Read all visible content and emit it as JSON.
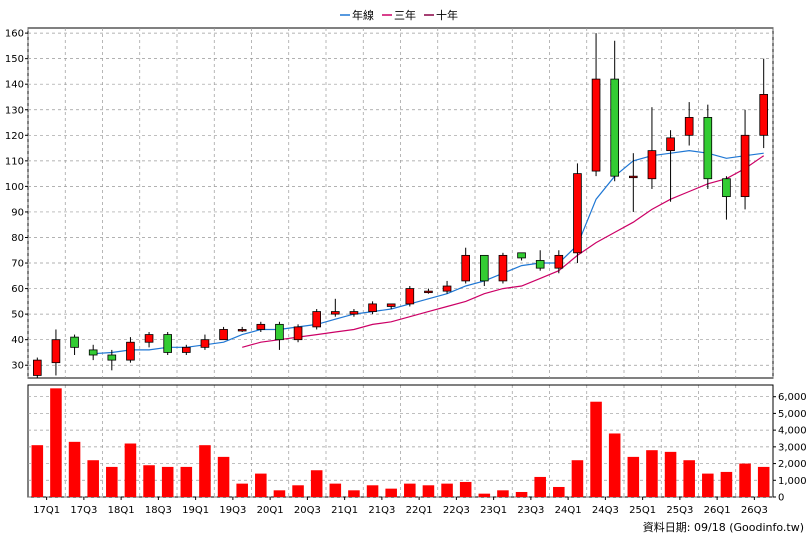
{
  "chart_data": {
    "type": "candlestick",
    "legend": [
      {
        "name": "年線",
        "color": "#1f77d4"
      },
      {
        "name": "三年",
        "color": "#cc0066"
      },
      {
        "name": "十年",
        "color": "#880044"
      }
    ],
    "legend_position": "top-center",
    "x_tick_labels": [
      "17Q1",
      "17Q3",
      "18Q1",
      "18Q3",
      "19Q1",
      "19Q3",
      "20Q1",
      "20Q3",
      "21Q1",
      "21Q3",
      "22Q1",
      "22Q3",
      "23Q1",
      "23Q3",
      "24Q1",
      "24Q3",
      "25Q1",
      "25Q3",
      "26Q1",
      "26Q3"
    ],
    "price_axis": {
      "range": [
        25,
        162
      ],
      "ticks": [
        30,
        40,
        50,
        60,
        70,
        80,
        90,
        100,
        110,
        120,
        130,
        140,
        150,
        160
      ],
      "side": "left"
    },
    "volume_axis": {
      "range": [
        0,
        6700
      ],
      "ticks": [
        0,
        1000,
        2000,
        3000,
        4000,
        5000,
        6000
      ],
      "tick_labels": [
        "0",
        "1,000",
        "2,000",
        "3,000",
        "4,000",
        "5,000",
        "6,000"
      ],
      "side": "right"
    },
    "grid": true,
    "up_color": "#ff0000",
    "down_color": "#33cc33",
    "volume_color": "#ff0000",
    "candles": [
      {
        "o": 26,
        "h": 33,
        "l": 25,
        "c": 32
      },
      {
        "o": 31,
        "h": 44,
        "l": 26,
        "c": 40
      },
      {
        "o": 41,
        "h": 42,
        "l": 34,
        "c": 37
      },
      {
        "o": 36,
        "h": 38,
        "l": 32,
        "c": 34
      },
      {
        "o": 34,
        "h": 36,
        "l": 28,
        "c": 32
      },
      {
        "o": 32,
        "h": 41,
        "l": 31,
        "c": 39
      },
      {
        "o": 39,
        "h": 43,
        "l": 37,
        "c": 42
      },
      {
        "o": 42,
        "h": 43,
        "l": 34,
        "c": 35
      },
      {
        "o": 35,
        "h": 38,
        "l": 34,
        "c": 37
      },
      {
        "o": 37,
        "h": 42,
        "l": 36,
        "c": 40
      },
      {
        "o": 40,
        "h": 45,
        "l": 40,
        "c": 44
      },
      {
        "o": 44,
        "h": 45,
        "l": 43,
        "c": 44
      },
      {
        "o": 44,
        "h": 47,
        "l": 43,
        "c": 46
      },
      {
        "o": 46,
        "h": 47,
        "l": 36,
        "c": 40
      },
      {
        "o": 40,
        "h": 46,
        "l": 39,
        "c": 45
      },
      {
        "o": 45,
        "h": 52,
        "l": 44,
        "c": 51
      },
      {
        "o": 50,
        "h": 56,
        "l": 49,
        "c": 51
      },
      {
        "o": 50,
        "h": 52,
        "l": 49,
        "c": 51
      },
      {
        "o": 51,
        "h": 55,
        "l": 50,
        "c": 54
      },
      {
        "o": 53,
        "h": 54,
        "l": 52,
        "c": 54
      },
      {
        "o": 54,
        "h": 61,
        "l": 53,
        "c": 60
      },
      {
        "o": 59,
        "h": 60,
        "l": 58,
        "c": 59
      },
      {
        "o": 59,
        "h": 63,
        "l": 58,
        "c": 61
      },
      {
        "o": 63,
        "h": 76,
        "l": 62,
        "c": 73
      },
      {
        "o": 73,
        "h": 73,
        "l": 61,
        "c": 63
      },
      {
        "o": 63,
        "h": 74,
        "l": 62,
        "c": 73
      },
      {
        "o": 74,
        "h": 74,
        "l": 71,
        "c": 72
      },
      {
        "o": 71,
        "h": 75,
        "l": 67,
        "c": 68
      },
      {
        "o": 68,
        "h": 75,
        "l": 66,
        "c": 73
      },
      {
        "o": 74,
        "h": 109,
        "l": 70,
        "c": 105
      },
      {
        "o": 106,
        "h": 160,
        "l": 104,
        "c": 142
      },
      {
        "o": 142,
        "h": 157,
        "l": 102,
        "c": 104
      },
      {
        "o": 104,
        "h": 113,
        "l": 90,
        "c": 104
      },
      {
        "o": 103,
        "h": 131,
        "l": 99,
        "c": 114
      },
      {
        "o": 114,
        "h": 122,
        "l": 94,
        "c": 119
      },
      {
        "o": 120,
        "h": 133,
        "l": 116,
        "c": 127
      },
      {
        "o": 127,
        "h": 132,
        "l": 99,
        "c": 103
      },
      {
        "o": 103,
        "h": 104,
        "l": 87,
        "c": 96
      },
      {
        "o": 96,
        "h": 130,
        "l": 91,
        "c": 120
      },
      {
        "o": 120,
        "h": 150,
        "l": 115,
        "c": 136
      }
    ],
    "volume": [
      3100,
      6500,
      3300,
      2200,
      1800,
      3200,
      1900,
      1800,
      1800,
      3100,
      2400,
      800,
      1400,
      400,
      700,
      1600,
      800,
      400,
      700,
      500,
      800,
      700,
      800,
      900,
      200,
      400,
      300,
      1200,
      600,
      2200,
      5700,
      3800,
      2400,
      2800,
      2700,
      2200,
      1400,
      1500,
      2000,
      1800
    ],
    "ma_1y": [
      null,
      null,
      null,
      34.5,
      35,
      36,
      36,
      37,
      37,
      38,
      39,
      42,
      44,
      44,
      45,
      46,
      48,
      50,
      51,
      52,
      54,
      56,
      58,
      61,
      63,
      66,
      69,
      70,
      70,
      77,
      95,
      104,
      110,
      112,
      113,
      114,
      113,
      111,
      112,
      113
    ],
    "ma_3y": [
      null,
      null,
      null,
      null,
      null,
      null,
      null,
      null,
      null,
      null,
      null,
      37,
      39,
      40,
      41,
      42,
      43,
      44,
      46,
      47,
      49,
      51,
      53,
      55,
      58,
      60,
      61,
      64,
      67,
      73,
      78,
      82,
      86,
      91,
      95,
      98,
      101,
      103,
      107,
      112
    ],
    "source_text": "資料日期: 09/18 (Goodinfo.tw)"
  }
}
